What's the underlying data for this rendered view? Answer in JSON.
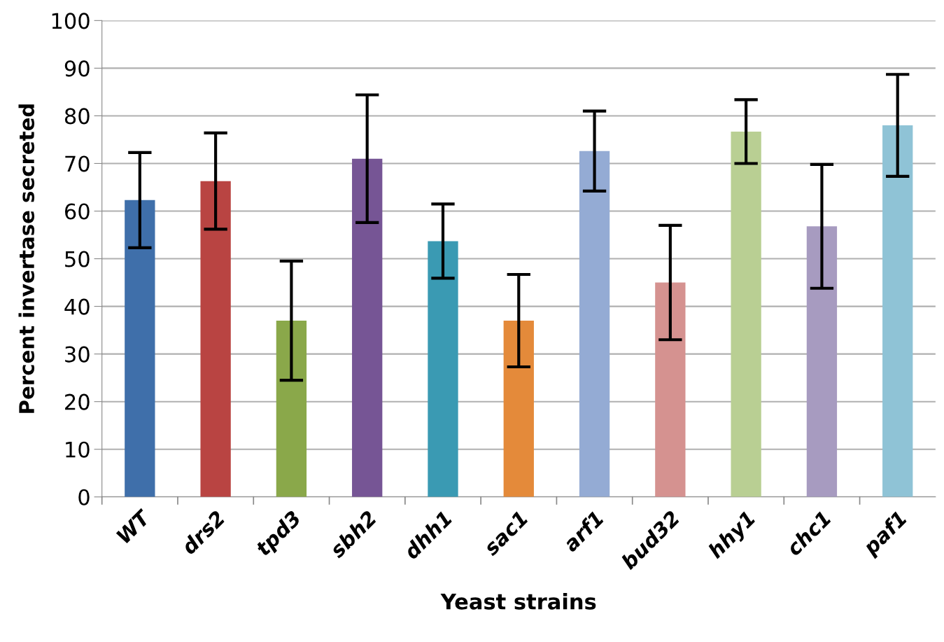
{
  "chart_data": {
    "type": "bar",
    "xlabel": "Yeast strains",
    "ylabel": "Percent invertase secreted",
    "categories": [
      "WT",
      "drs2",
      "tpd3",
      "sbh2",
      "dhh1",
      "sac1",
      "arf1",
      "bud32",
      "hhy1",
      "chc1",
      "paf1"
    ],
    "values": [
      62.3,
      66.3,
      37,
      71,
      53.7,
      37,
      72.6,
      45,
      76.7,
      56.8,
      78
    ],
    "errors": [
      10,
      10.1,
      12.5,
      13.4,
      7.8,
      9.7,
      8.4,
      12,
      6.7,
      13,
      10.7
    ],
    "colors": [
      "#3f6faa",
      "#b94442",
      "#8aa84a",
      "#765595",
      "#3a9ab3",
      "#e48a3a",
      "#94abd4",
      "#d59290",
      "#b9cf93",
      "#a79bc0",
      "#8fc3d6"
    ],
    "ylim": [
      0,
      100
    ],
    "yticks": [
      0,
      10,
      20,
      30,
      40,
      50,
      60,
      70,
      80,
      90,
      100
    ],
    "grid": "y"
  }
}
